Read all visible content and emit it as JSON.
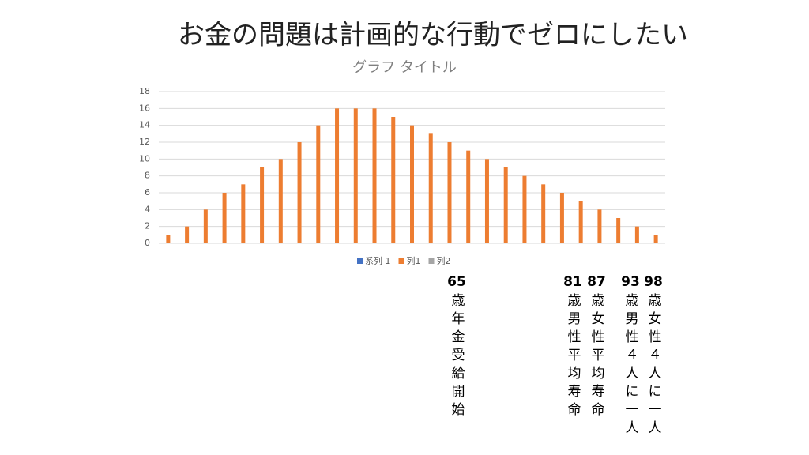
{
  "slide": {
    "title": "お金の問題は計画的な行動でゼロにしたい"
  },
  "chart_data": {
    "type": "bar",
    "title": "グラフ タイトル",
    "categories": [
      null,
      null,
      null,
      null,
      null,
      null,
      null,
      null,
      null,
      null,
      null,
      null,
      null,
      null,
      null,
      null,
      null,
      null,
      null,
      null,
      null,
      null,
      null,
      null,
      null,
      null,
      null
    ],
    "series": [
      {
        "name": "系列 1",
        "color": "#4472c4",
        "values": [
          null,
          null,
          null,
          null,
          null,
          null,
          null,
          null,
          null,
          null,
          null,
          null,
          null,
          null,
          null,
          null,
          null,
          null,
          null,
          null,
          null,
          null,
          null,
          null,
          null,
          null,
          null
        ]
      },
      {
        "name": "列1",
        "color": "#ed7d31",
        "values": [
          1,
          2,
          4,
          6,
          7,
          9,
          10,
          12,
          14,
          16,
          16,
          16,
          15,
          14,
          13,
          12,
          11,
          10,
          9,
          8,
          7,
          6,
          5,
          4,
          3,
          2,
          1
        ]
      },
      {
        "name": "列2",
        "color": "#a5a5a5",
        "values": [
          null,
          null,
          null,
          null,
          null,
          null,
          null,
          null,
          null,
          null,
          null,
          null,
          null,
          null,
          null,
          null,
          null,
          null,
          null,
          null,
          null,
          null,
          null,
          null,
          null,
          null,
          null
        ]
      }
    ],
    "ylim": [
      0,
      18
    ],
    "yticks": [
      0,
      2,
      4,
      6,
      8,
      10,
      12,
      14,
      16,
      18
    ],
    "grid": true,
    "legend": "bottom"
  },
  "annotations": [
    {
      "age": "65",
      "text": "歳年金受給開始"
    },
    {
      "age": "81",
      "text": "歳男性平均寿命"
    },
    {
      "age": "87",
      "text": "歳女性平均寿命"
    },
    {
      "age": "93",
      "text": "歳男性４人に一人"
    },
    {
      "age": "98",
      "text": "歳女性４人に一人"
    }
  ]
}
